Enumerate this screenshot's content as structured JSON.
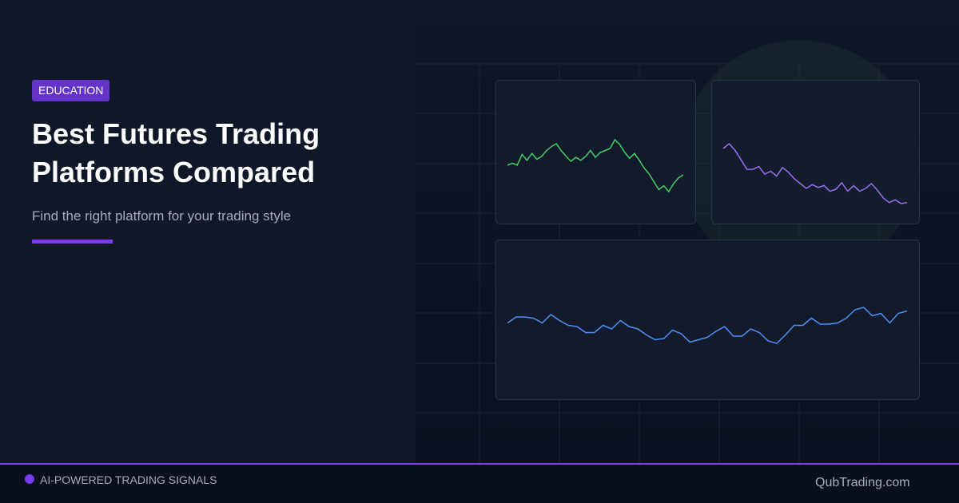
{
  "badge": "EDUCATION",
  "title_lines": [
    "Best Futures Trading",
    "Platforms Compared"
  ],
  "subtitle": "Find the right platform for your trading style",
  "footer": {
    "tagline": "AI-POWERED TRADING SIGNALS",
    "site": "QubTrading.com"
  },
  "sparklines": [
    {
      "color": "#3fcf63",
      "values": [
        95,
        97,
        95,
        106,
        100,
        107,
        101,
        104,
        110,
        114,
        117,
        110,
        104,
        99,
        103,
        100,
        104,
        110,
        103,
        108,
        110,
        112,
        121,
        116,
        108,
        102,
        107,
        100,
        92,
        86,
        78,
        70,
        74,
        68,
        76,
        82,
        85
      ]
    },
    {
      "color": "#9b6cf0",
      "values": [
        107,
        112,
        105,
        95,
        85,
        85,
        88,
        80,
        83,
        78,
        87,
        82,
        75,
        70,
        65,
        69,
        66,
        68,
        62,
        64,
        71,
        62,
        68,
        62,
        65,
        70,
        63,
        55,
        50,
        53,
        49,
        50
      ]
    },
    {
      "color": "#4a8ff5",
      "values": [
        92,
        97,
        97,
        96,
        92,
        99,
        94,
        90,
        89,
        84,
        84,
        90,
        87,
        94,
        89,
        87,
        82,
        78,
        79,
        86,
        83,
        76,
        78,
        80,
        85,
        89,
        81,
        81,
        87,
        84,
        77,
        75,
        82,
        90,
        90,
        96,
        91,
        91,
        92,
        96,
        103,
        105,
        98,
        100,
        92,
        100,
        102
      ]
    }
  ]
}
